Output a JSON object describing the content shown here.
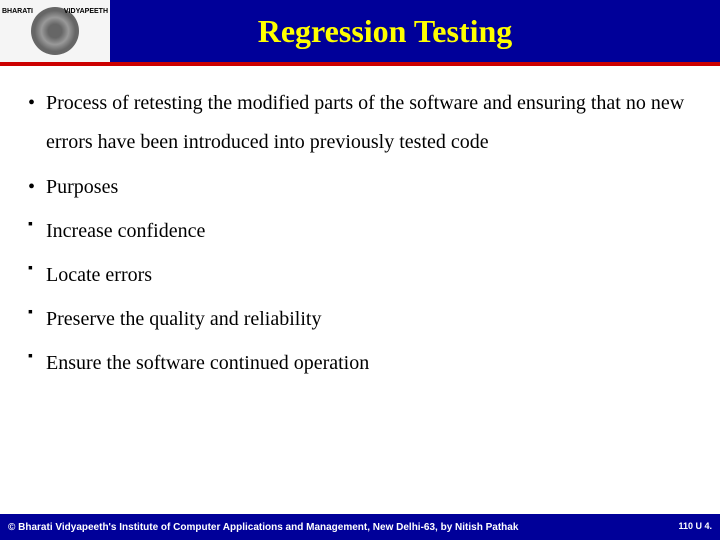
{
  "header": {
    "title": "Regression Testing",
    "logo_left": "BHARATI",
    "logo_right": "VIDYAPEETH",
    "background_color": "#000099",
    "title_color": "#ffff00",
    "accent_line_color": "#cc0000"
  },
  "bullets": [
    {
      "style": "round",
      "text": "Process of retesting the modified parts of the software and ensuring that no new errors have been introduced into previously tested code"
    },
    {
      "style": "round",
      "text": "Purposes"
    },
    {
      "style": "square",
      "text": "Increase confidence"
    },
    {
      "style": "square",
      "text": "Locate errors"
    },
    {
      "style": "square",
      "text": "Preserve the quality and reliability"
    },
    {
      "style": "square",
      "text": "Ensure the software continued operation"
    }
  ],
  "footer": {
    "copyright": "© Bharati Vidyapeeth's Institute of Computer Applications and Management, New Delhi-63, by  Nitish Pathak",
    "page_a": "110",
    "page_b": "U 4."
  },
  "typography": {
    "title_fontsize": 32,
    "body_fontsize": 20,
    "footer_fontsize": 10,
    "body_font": "Times New Roman",
    "footer_font": "Arial"
  },
  "colors": {
    "background": "#ffffff",
    "text": "#000000",
    "footer_bg": "#000099",
    "footer_text": "#ffffff"
  }
}
